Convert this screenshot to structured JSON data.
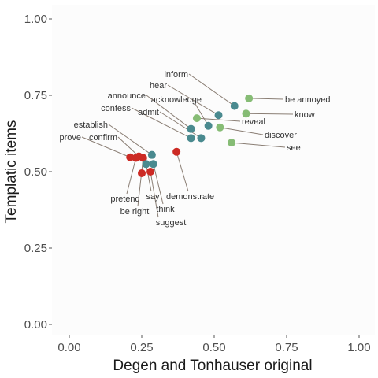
{
  "chart_data": {
    "type": "scatter",
    "title": "",
    "xlabel": "Degen and Tonhauser original",
    "ylabel": "Templatic items",
    "xlim": [
      -0.04,
      1.04
    ],
    "ylim": [
      -0.04,
      1.04
    ],
    "xticks": [
      "0.00",
      "0.25",
      "0.50",
      "0.75",
      "1.00"
    ],
    "yticks": [
      "0.00",
      "0.25",
      "0.50",
      "0.75",
      "1.00"
    ],
    "grid": false,
    "legend": "none",
    "colors": {
      "red": "#cc2a24",
      "teal": "#4a8a8f",
      "green": "#86bc75",
      "panel": "#fcfcfc",
      "line": "#8a7e74"
    },
    "points": [
      {
        "label": "inform",
        "x": 0.57,
        "y": 0.715,
        "color": "teal"
      },
      {
        "label": "be annoyed",
        "x": 0.62,
        "y": 0.74,
        "color": "green"
      },
      {
        "label": "know",
        "x": 0.61,
        "y": 0.69,
        "color": "green"
      },
      {
        "label": "hear",
        "x": 0.515,
        "y": 0.685,
        "color": "teal"
      },
      {
        "label": "acknowledge",
        "x": 0.48,
        "y": 0.65,
        "color": "teal"
      },
      {
        "label": "reveal",
        "x": 0.44,
        "y": 0.675,
        "color": "green"
      },
      {
        "label": "discover",
        "x": 0.52,
        "y": 0.645,
        "color": "green"
      },
      {
        "label": "announce",
        "x": 0.42,
        "y": 0.64,
        "color": "teal"
      },
      {
        "label": "admit",
        "x": 0.455,
        "y": 0.61,
        "color": "teal"
      },
      {
        "label": "confess",
        "x": 0.42,
        "y": 0.61,
        "color": "teal"
      },
      {
        "label": "see",
        "x": 0.56,
        "y": 0.595,
        "color": "green"
      },
      {
        "label": "demonstrate",
        "x": 0.37,
        "y": 0.565,
        "color": "red"
      },
      {
        "label": "establish",
        "x": 0.285,
        "y": 0.555,
        "color": "teal"
      },
      {
        "label": "confirm",
        "x": 0.24,
        "y": 0.55,
        "color": "red"
      },
      {
        "label": "prove",
        "x": 0.21,
        "y": 0.547,
        "color": "red"
      },
      {
        "label": "pretend",
        "x": 0.23,
        "y": 0.545,
        "color": "red"
      },
      {
        "label": "be right",
        "x": 0.255,
        "y": 0.545,
        "color": "red"
      },
      {
        "label": "say",
        "x": 0.265,
        "y": 0.525,
        "color": "teal"
      },
      {
        "label": "think",
        "x": 0.29,
        "y": 0.525,
        "color": "teal"
      },
      {
        "label": "suggest",
        "x": 0.28,
        "y": 0.5,
        "color": "red"
      },
      {
        "label": "",
        "x": 0.25,
        "y": 0.495,
        "color": "red"
      }
    ]
  }
}
